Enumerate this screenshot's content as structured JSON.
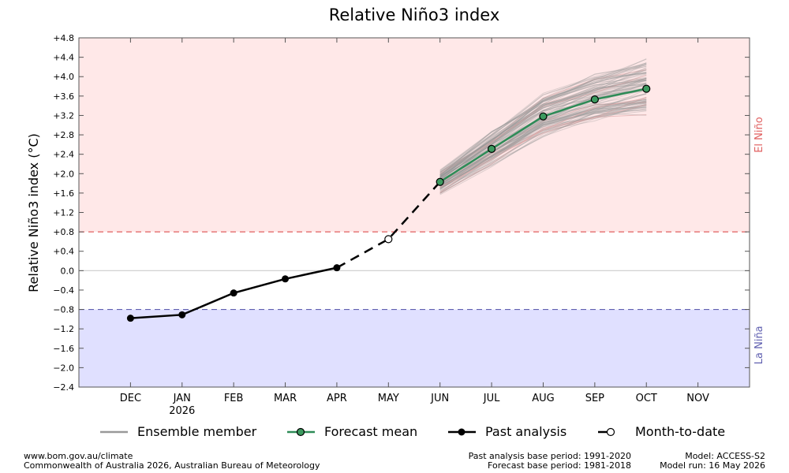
{
  "chart_data": {
    "type": "line",
    "title": "Relative Niño3 index",
    "ylabel": "Relative Niño3 index (°C)",
    "ylim": [
      -2.4,
      4.8
    ],
    "yticks": [
      -2.4,
      -2.0,
      -1.6,
      -1.2,
      -0.8,
      -0.4,
      0.0,
      0.4,
      0.8,
      1.2,
      1.6,
      2.0,
      2.4,
      2.8,
      3.2,
      3.6,
      4.0,
      4.4,
      4.8
    ],
    "ytick_labels": [
      "−2.4",
      "−2.0",
      "−1.6",
      "−1.2",
      "−0.8",
      "−0.4",
      "0.0",
      "+0.4",
      "+0.8",
      "+1.2",
      "+1.6",
      "+2.0",
      "+2.4",
      "+2.8",
      "+3.2",
      "+3.6",
      "+4.0",
      "+4.4",
      "+4.8"
    ],
    "categories": [
      "DEC",
      "JAN",
      "FEB",
      "MAR",
      "APR",
      "MAY",
      "JUN",
      "JUL",
      "AUG",
      "SEP",
      "OCT",
      "NOV"
    ],
    "year_label": {
      "category": "JAN",
      "text": "2026"
    },
    "thresholds": [
      {
        "value": 0.8,
        "label": "El Niño",
        "color": "#e06060",
        "fill": "#ffe8e8"
      },
      {
        "value": -0.8,
        "label": "La Niña",
        "color": "#6060b0",
        "fill": "#e0e0ff"
      }
    ],
    "zero_line": true,
    "series": [
      {
        "name": "Past analysis",
        "color": "#000000",
        "points": [
          [
            "DEC",
            -0.98
          ],
          [
            "JAN",
            -0.91
          ],
          [
            "FEB",
            -0.46
          ],
          [
            "MAR",
            -0.17
          ],
          [
            "APR",
            0.06
          ]
        ]
      },
      {
        "name": "Month-to-date",
        "color": "#000000",
        "points": [
          [
            "APR",
            0.06
          ],
          [
            "MAY",
            0.65
          ],
          [
            "JUN",
            1.83
          ]
        ]
      },
      {
        "name": "Forecast mean",
        "color": "#2e8b57",
        "points": [
          [
            "JUN",
            1.83
          ],
          [
            "JUL",
            2.51
          ],
          [
            "AUG",
            3.18
          ],
          [
            "SEP",
            3.53
          ],
          [
            "OCT",
            3.75
          ]
        ]
      }
    ],
    "ensemble": {
      "name": "Ensemble member",
      "color": "#999999",
      "months": [
        "JUN",
        "JUL",
        "AUG",
        "SEP",
        "OCT"
      ],
      "mean": [
        1.83,
        2.51,
        3.18,
        3.53,
        3.75
      ],
      "spread": [
        0.22,
        0.32,
        0.42,
        0.46,
        0.52
      ],
      "member_count": 100
    },
    "legend": [
      "Ensemble member",
      "Forecast mean",
      "Past analysis",
      "Month-to-date"
    ]
  },
  "footer": {
    "left": [
      "www.bom.gov.au/climate",
      "Commonwealth of Australia 2026, Australian Bureau of Meteorology"
    ],
    "middle": [
      "Past analysis base period: 1991-2020",
      "Forecast base period: 1981-2018"
    ],
    "right": [
      "Model: ACCESS-S2",
      "Model run: 16 May 2026"
    ]
  }
}
